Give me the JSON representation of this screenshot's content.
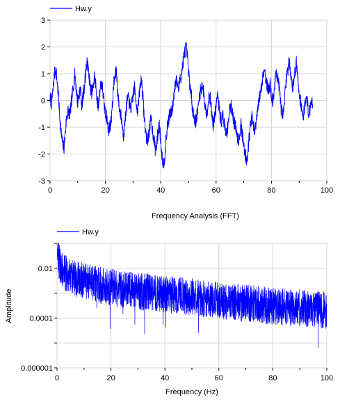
{
  "colors": {
    "series": "#0000ff",
    "grid": "#d3d3d3",
    "axis": "#000000",
    "background": "#ffffff"
  },
  "chart_data": [
    {
      "type": "line",
      "title": "",
      "xlabel": "",
      "ylabel": "",
      "xlim": [
        0,
        100
      ],
      "ylim": [
        -3,
        3
      ],
      "xticks": [
        0,
        20,
        40,
        60,
        80,
        100
      ],
      "yticks": [
        -3,
        -2,
        -1,
        0,
        1,
        2,
        3
      ],
      "grid": true,
      "legend": "top-left",
      "series": [
        {
          "name": "Hw.y",
          "sample_step": 0.5,
          "x_start": 0,
          "y": [
            0.1,
            -0.1,
            0.3,
            0.9,
            1.2,
            0.8,
            0.2,
            -0.6,
            -1.2,
            -1.6,
            -1.8,
            -1.2,
            -0.6,
            -0.4,
            -0.5,
            -0.3,
            0.2,
            0.6,
            1.0,
            0.4,
            -0.1,
            0.3,
            0.4,
            -0.2,
            0.2,
            0.6,
            1.2,
            1.4,
            1.0,
            0.5,
            0.3,
            0.4,
            0.9,
            0.6,
            0.0,
            -0.2,
            0.4,
            0.7,
            0.4,
            -0.1,
            -0.5,
            -0.6,
            -1.1,
            -1.0,
            -0.8,
            -0.2,
            0.6,
            0.9,
            1.1,
            0.3,
            -0.3,
            -0.5,
            -0.8,
            -1.3,
            -0.9,
            -0.3,
            0.1,
            0.0,
            -0.3,
            -0.2,
            0.2,
            0.5,
            0.1,
            -0.4,
            -0.1,
            0.5,
            0.8,
            0.2,
            -0.6,
            -1.1,
            -1.5,
            -1.4,
            -1.0,
            -0.7,
            -1.1,
            -1.4,
            -1.8,
            -1.7,
            -1.2,
            -0.9,
            -1.5,
            -2.1,
            -2.4,
            -2.0,
            -1.4,
            -0.9,
            -0.6,
            -0.5,
            -0.4,
            -0.1,
            0.5,
            0.8,
            0.6,
            0.4,
            0.8,
            1.0,
            1.4,
            1.7,
            2.0,
            1.8,
            1.1,
            0.6,
            0.2,
            -0.3,
            -0.6,
            -0.8,
            -0.6,
            -0.3,
            0.2,
            0.4,
            0.6,
            0.3,
            -0.2,
            -0.5,
            -0.2,
            0.3,
            0.0,
            -0.6,
            -0.9,
            -0.6,
            -0.2,
            0.2,
            -0.2,
            -0.6,
            -0.8,
            -0.5,
            -0.9,
            -1.3,
            -1.1,
            -0.7,
            -0.3,
            -0.2,
            -0.5,
            -0.8,
            -1.0,
            -1.2,
            -1.5,
            -1.3,
            -0.9,
            -1.3,
            -1.7,
            -2.0,
            -2.2,
            -1.9,
            -1.3,
            -0.9,
            -0.6,
            -1.0,
            -1.2,
            -0.8,
            -0.4,
            0.0,
            0.3,
            0.6,
            1.0,
            1.2,
            0.8,
            0.5,
            0.4,
            0.6,
            0.2,
            -0.1,
            0.4,
            0.9,
            1.0,
            0.7,
            0.2,
            -0.3,
            -0.5,
            -0.2,
            0.4,
            0.9,
            1.2,
            1.5,
            1.0,
            0.5,
            0.6,
            1.1,
            1.4,
            0.9,
            0.3,
            0.0,
            -0.4,
            -0.6,
            -0.2,
            0.1,
            -0.1,
            -0.5,
            -0.3,
            0.0,
            -0.1
          ]
        }
      ]
    },
    {
      "type": "line",
      "title": "Frequency Analysis (FFT)",
      "xlabel": "Frequency (Hz)",
      "ylabel": "Amplitude",
      "yscale": "log",
      "xlim": [
        0,
        100
      ],
      "ylim": [
        1e-06,
        0.1
      ],
      "xticks": [
        0,
        20,
        40,
        60,
        80,
        100
      ],
      "yticks": [
        1e-06,
        0.0001,
        0.01
      ],
      "ytick_labels": [
        "0.000001",
        "0.0001",
        "0.01"
      ],
      "grid": true,
      "legend": "top-left",
      "series": [
        {
          "name": "Hw.y",
          "envelope_hz": [
            0.1,
            0.5,
            1,
            2,
            4,
            7,
            10,
            15,
            20,
            30,
            40,
            50,
            60,
            70,
            80,
            90,
            100
          ],
          "typical_amplitude": [
            0.05,
            0.025,
            0.015,
            0.008,
            0.005,
            0.0035,
            0.003,
            0.0022,
            0.0017,
            0.0012,
            0.0009,
            0.0007,
            0.0005,
            0.0004,
            0.0003,
            0.00025,
            0.0002
          ]
        }
      ]
    }
  ],
  "legend": {
    "label": "Hw.y"
  },
  "ticks": {
    "top_x": [
      "0",
      "20",
      "40",
      "60",
      "80",
      "100"
    ],
    "top_y": [
      "-3",
      "-2",
      "-1",
      "0",
      "1",
      "2",
      "3"
    ],
    "bottom_x": [
      "0",
      "20",
      "40",
      "60",
      "80",
      "100"
    ],
    "bottom_y": [
      "0.000001",
      "0.0001",
      "0.01"
    ]
  }
}
